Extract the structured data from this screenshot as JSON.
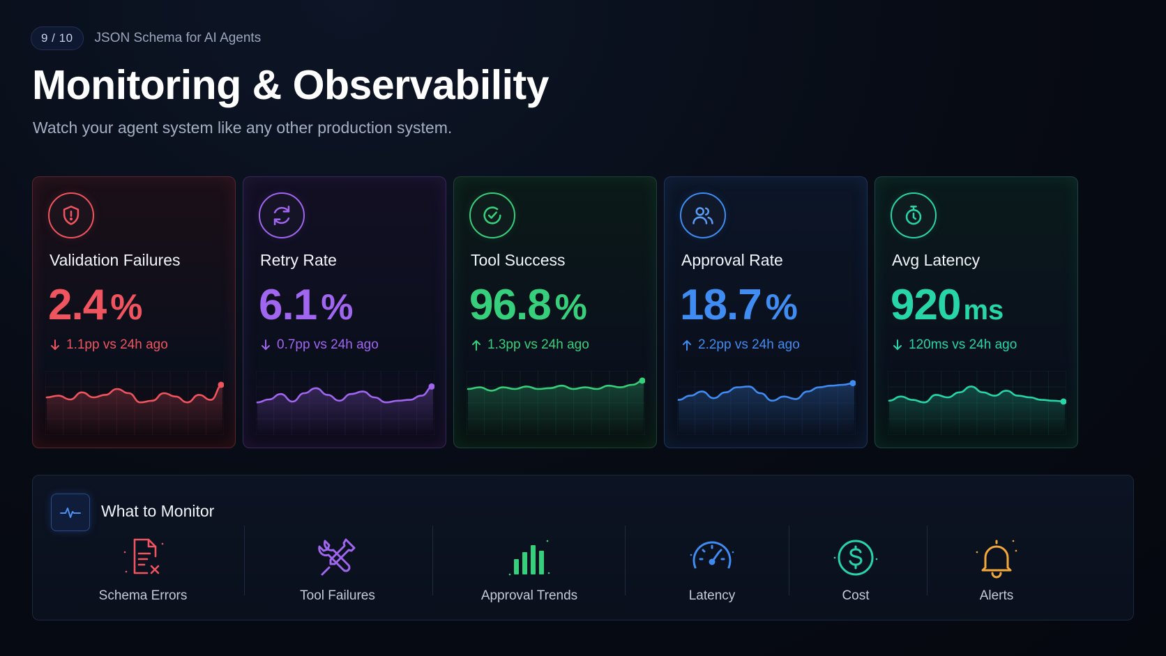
{
  "header": {
    "slide_counter": "9 / 10",
    "deck_title": "JSON Schema for AI Agents",
    "title": "Monitoring & Observability",
    "subtitle": "Watch your agent system like any other production system."
  },
  "colors": {
    "red": "#f0545f",
    "purple": "#a066f0",
    "green": "#36d07c",
    "blue": "#3f8cf2",
    "teal": "#27d6a8"
  },
  "metrics": [
    {
      "title": "Validation Failures",
      "value": "2.4",
      "unit": "%",
      "delta": "1.1pp vs 24h ago",
      "direction": "down",
      "icon": "shield-alert-icon",
      "color": "#f0545f",
      "spark": [
        0.5,
        0.46,
        0.55,
        0.38,
        0.5,
        0.44,
        0.3,
        0.4,
        0.62,
        0.58,
        0.4,
        0.48,
        0.62,
        0.44,
        0.56,
        0.2
      ]
    },
    {
      "title": "Retry Rate",
      "value": "6.1",
      "unit": "%",
      "delta": "0.7pp vs 24h ago",
      "direction": "down",
      "icon": "refresh-icon",
      "color": "#a066f0",
      "spark": [
        0.62,
        0.55,
        0.42,
        0.6,
        0.4,
        0.28,
        0.44,
        0.58,
        0.42,
        0.36,
        0.5,
        0.62,
        0.58,
        0.56,
        0.46,
        0.24
      ]
    },
    {
      "title": "Tool Success",
      "value": "96.8",
      "unit": "%",
      "delta": "1.3pp vs 24h ago",
      "direction": "up",
      "icon": "check-circle-icon",
      "color": "#36d07c",
      "spark": [
        0.3,
        0.26,
        0.34,
        0.26,
        0.3,
        0.24,
        0.3,
        0.28,
        0.22,
        0.3,
        0.26,
        0.3,
        0.22,
        0.26,
        0.2,
        0.1
      ]
    },
    {
      "title": "Approval Rate",
      "value": "18.7",
      "unit": "%",
      "delta": "2.2pp vs 24h ago",
      "direction": "up",
      "icon": "users-icon",
      "color": "#3f8cf2",
      "spark": [
        0.56,
        0.46,
        0.36,
        0.52,
        0.38,
        0.26,
        0.24,
        0.4,
        0.58,
        0.48,
        0.54,
        0.36,
        0.26,
        0.22,
        0.2,
        0.16
      ]
    },
    {
      "title": "Avg Latency",
      "value": "920",
      "unit": "ms",
      "delta": "120ms vs 24h ago",
      "direction": "down",
      "icon": "stopwatch-icon",
      "color": "#27d6a8",
      "spark": [
        0.58,
        0.48,
        0.56,
        0.62,
        0.44,
        0.5,
        0.38,
        0.24,
        0.38,
        0.46,
        0.34,
        0.46,
        0.5,
        0.56,
        0.58,
        0.6
      ]
    }
  ],
  "monitor": {
    "title": "What to Monitor",
    "items": [
      {
        "label": "Schema Errors",
        "icon": "file-x-icon",
        "color": "#f0545f"
      },
      {
        "label": "Tool Failures",
        "icon": "tools-icon",
        "color": "#a066f0"
      },
      {
        "label": "Approval Trends",
        "icon": "bar-chart-icon",
        "color": "#36d07c"
      },
      {
        "label": "Latency",
        "icon": "gauge-icon",
        "color": "#3f8cf2"
      },
      {
        "label": "Cost",
        "icon": "dollar-icon",
        "color": "#27d6a8"
      },
      {
        "label": "Alerts",
        "icon": "bell-icon",
        "color": "#f3a93a"
      }
    ]
  }
}
